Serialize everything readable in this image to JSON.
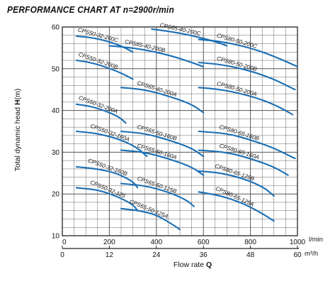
{
  "chart_data": {
    "type": "line",
    "title": "PERFORMANCE CHART AT n=2900r/min",
    "ylabel_parts": [
      "Total dynamic head ",
      "H",
      "(m)"
    ],
    "xlabel_parts": [
      "Flow rate ",
      "Q"
    ],
    "x_unit_top": "l/min",
    "x_unit_bottom": "m³/h",
    "xlim": [
      0,
      1000
    ],
    "ylim": [
      10,
      60
    ],
    "x_ticks_top": [
      "0",
      "200",
      "400",
      "600",
      "800",
      "1000"
    ],
    "x_ticks_bottom": [
      "0",
      "12",
      "24",
      "36",
      "48",
      "60"
    ],
    "y_ticks": [
      "10",
      "20",
      "30",
      "40",
      "50",
      "60"
    ],
    "grid": true,
    "series_color": "#1a6fb5",
    "series": [
      {
        "name": "CPS65-40-200C",
        "points": [
          [
            380,
            59.5
          ],
          [
            450,
            59.0
          ],
          [
            550,
            58.0
          ],
          [
            650,
            56.5
          ],
          [
            700,
            55.5
          ]
        ]
      },
      {
        "name": "CPS50-32-200C",
        "points": [
          [
            60,
            57.8
          ],
          [
            120,
            57.5
          ],
          [
            180,
            56.8
          ],
          [
            250,
            55.5
          ],
          [
            300,
            54.0
          ]
        ]
      },
      {
        "name": "CPS65-40-200B",
        "points": [
          [
            200,
            55.5
          ],
          [
            300,
            55.0
          ],
          [
            400,
            54.0
          ],
          [
            500,
            52.5
          ],
          [
            600,
            50.5
          ]
        ]
      },
      {
        "name": "CPS80-50-200C",
        "points": [
          [
            580,
            57.0
          ],
          [
            680,
            56.5
          ],
          [
            800,
            55.0
          ],
          [
            900,
            53.0
          ],
          [
            1000,
            50.5
          ]
        ]
      },
      {
        "name": "CPS50-32-200B",
        "points": [
          [
            60,
            52.0
          ],
          [
            120,
            51.5
          ],
          [
            180,
            50.5
          ],
          [
            250,
            49.0
          ],
          [
            300,
            47.5
          ]
        ]
      },
      {
        "name": "CPS80-50-200B",
        "points": [
          [
            580,
            51.5
          ],
          [
            680,
            51.0
          ],
          [
            800,
            49.5
          ],
          [
            900,
            47.5
          ],
          [
            990,
            45.0
          ]
        ]
      },
      {
        "name": "CPS80-50-200A",
        "points": [
          [
            580,
            45.5
          ],
          [
            680,
            45.0
          ],
          [
            800,
            43.5
          ],
          [
            900,
            41.5
          ],
          [
            980,
            39.0
          ]
        ]
      },
      {
        "name": "CPS65-40-200A",
        "points": [
          [
            250,
            45.5
          ],
          [
            350,
            45.0
          ],
          [
            450,
            43.5
          ],
          [
            550,
            41.5
          ],
          [
            600,
            39.5
          ]
        ]
      },
      {
        "name": "CPS50-32-200A",
        "points": [
          [
            60,
            41.5
          ],
          [
            120,
            41.0
          ],
          [
            180,
            40.0
          ],
          [
            240,
            38.5
          ],
          [
            270,
            37.0
          ]
        ]
      },
      {
        "name": "CPS50-32-160A",
        "points": [
          [
            60,
            35.0
          ],
          [
            150,
            34.5
          ],
          [
            250,
            33.0
          ],
          [
            320,
            31.0
          ],
          [
            360,
            29.0
          ]
        ]
      },
      {
        "name": "CPS65-50-160B",
        "points": [
          [
            250,
            35.0
          ],
          [
            350,
            34.5
          ],
          [
            450,
            33.0
          ],
          [
            550,
            31.0
          ],
          [
            600,
            29.0
          ]
        ]
      },
      {
        "name": "CPS80-65-160B",
        "points": [
          [
            580,
            35.0
          ],
          [
            700,
            34.5
          ],
          [
            800,
            33.0
          ],
          [
            900,
            31.0
          ],
          [
            990,
            28.5
          ]
        ]
      },
      {
        "name": "CPS80-65-160A",
        "points": [
          [
            580,
            30.5
          ],
          [
            700,
            30.0
          ],
          [
            800,
            28.5
          ],
          [
            900,
            26.5
          ],
          [
            960,
            24.5
          ]
        ]
      },
      {
        "name": "CPS65-50-160A",
        "points": [
          [
            250,
            30.5
          ],
          [
            350,
            30.0
          ],
          [
            450,
            28.5
          ],
          [
            550,
            26.5
          ],
          [
            600,
            24.5
          ]
        ]
      },
      {
        "name": "CPS50-32-160B",
        "points": [
          [
            60,
            26.5
          ],
          [
            150,
            26.0
          ],
          [
            230,
            25.0
          ],
          [
            300,
            23.0
          ],
          [
            320,
            21.5
          ]
        ]
      },
      {
        "name": "CPS80-65-125B",
        "points": [
          [
            580,
            25.5
          ],
          [
            680,
            25.0
          ],
          [
            780,
            23.5
          ],
          [
            860,
            21.5
          ],
          [
            900,
            19.5
          ]
        ]
      },
      {
        "name": "CPS65-50-125B",
        "points": [
          [
            250,
            22.5
          ],
          [
            350,
            22.0
          ],
          [
            450,
            20.5
          ],
          [
            530,
            18.5
          ],
          [
            560,
            17.0
          ]
        ]
      },
      {
        "name": "CPS50-32-125",
        "points": [
          [
            60,
            21.5
          ],
          [
            150,
            21.0
          ],
          [
            230,
            19.5
          ],
          [
            300,
            17.5
          ],
          [
            320,
            16.0
          ]
        ]
      },
      {
        "name": "CPS80-65-125A",
        "points": [
          [
            580,
            20.5
          ],
          [
            680,
            19.5
          ],
          [
            780,
            17.5
          ],
          [
            860,
            15.0
          ],
          [
            900,
            13.5
          ]
        ]
      },
      {
        "name": "CPS65-50-125A",
        "points": [
          [
            250,
            16.5
          ],
          [
            330,
            16.0
          ],
          [
            400,
            15.0
          ],
          [
            460,
            13.0
          ],
          [
            500,
            11.5
          ]
        ]
      }
    ]
  }
}
